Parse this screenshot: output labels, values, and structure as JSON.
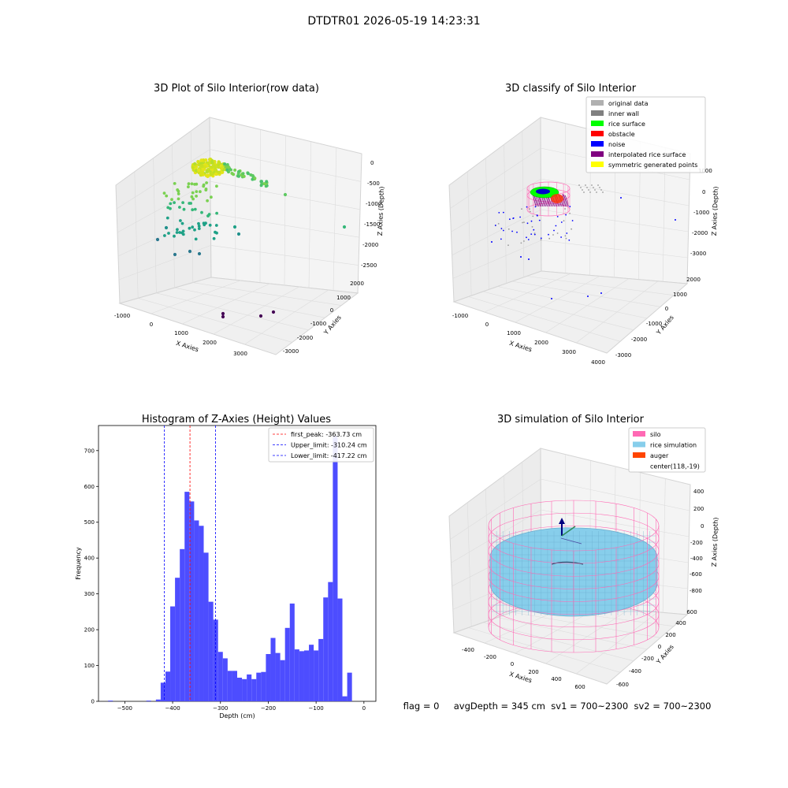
{
  "figure": {
    "suptitle": "DTDTR01 2026-05-19 14:23:31",
    "status_line": "flag = 0     avgDepth = 345 cm  sv1 = 700~2300  sv2 = 700~2300"
  },
  "panels": {
    "raw": {
      "title": "3D Plot of Silo Interior(row data)",
      "xlabel": "X Axies",
      "ylabel": "Y Axies",
      "zlabel": "Z Axies (Depth)",
      "xticks": [
        "-1000",
        "0",
        "1000",
        "2000",
        "3000"
      ],
      "yticks": [
        "2000",
        "1000",
        "0",
        "-1000",
        "-2000",
        "-3000"
      ],
      "zticks": [
        "0",
        "-500",
        "-1000",
        "-1500",
        "-2000",
        "-2500"
      ]
    },
    "classify": {
      "title": "3D classify of Silo Interior",
      "xlabel": "X Axies",
      "ylabel": "Y Axies",
      "zlabel": "Z Axies (Depth)",
      "xticks": [
        "-1000",
        "0",
        "1000",
        "2000",
        "3000",
        "4000"
      ],
      "yticks": [
        "2000",
        "1000",
        "0",
        "-1000",
        "-2000",
        "-3000"
      ],
      "zticks": [
        "1000",
        "0",
        "-1000",
        "-2000",
        "-3000"
      ],
      "legend": [
        {
          "label": "original data",
          "color": "#b0b0b0"
        },
        {
          "label": "inner wall",
          "color": "#808080"
        },
        {
          "label": "rice surface",
          "color": "#00ff00"
        },
        {
          "label": "obstacle",
          "color": "#ff0000"
        },
        {
          "label": "noise",
          "color": "#0000ff"
        },
        {
          "label": "interpolated rice surface",
          "color": "#800080"
        },
        {
          "label": "symmetric generated points",
          "color": "#ffff00"
        }
      ]
    },
    "simulation": {
      "title": "3D simulation of Silo Interior",
      "xlabel": "X Axies",
      "ylabel": "Y Axies",
      "zlabel": "Z Axies (Depth)",
      "xticks": [
        "-400",
        "-200",
        "0",
        "200",
        "400",
        "600"
      ],
      "yticks": [
        "600",
        "400",
        "200",
        "0",
        "-200",
        "-400",
        "-600"
      ],
      "zticks": [
        "400",
        "200",
        "0",
        "-200",
        "-400",
        "-600",
        "-800"
      ],
      "legend": [
        {
          "label": "silo",
          "color": "#ff69b4"
        },
        {
          "label": "rice simulation",
          "color": "#87ceeb"
        },
        {
          "label": "auger",
          "color": "#ff4500"
        },
        {
          "label": "center(118,-19)",
          "color": ""
        }
      ]
    }
  },
  "chart_data": [
    {
      "type": "scatter",
      "title": "3D Plot of Silo Interior(row data)",
      "xlabel": "X Axies",
      "ylabel": "Y Axies",
      "zlabel": "Z Axies (Depth)",
      "xlim": [
        -1000,
        3500
      ],
      "ylim": [
        -3000,
        2000
      ],
      "zlim": [
        -2700,
        0
      ],
      "grid": true
    },
    {
      "type": "scatter",
      "title": "3D classify of Silo Interior",
      "xlabel": "X Axies",
      "ylabel": "Y Axies",
      "zlabel": "Z Axies (Depth)",
      "xlim": [
        -1000,
        4000
      ],
      "ylim": [
        -3000,
        2000
      ],
      "zlim": [
        -3300,
        1000
      ],
      "legend_position": "top-right",
      "grid": true
    },
    {
      "type": "bar",
      "title": "Histogram of Z-Axies (Height) Values",
      "xlabel": "Depth (cm)",
      "ylabel": "Frequency",
      "xlim": [
        -555,
        25
      ],
      "ylim": [
        0,
        770
      ],
      "xticks": [
        -500,
        -400,
        -300,
        -200,
        -100,
        0
      ],
      "yticks": [
        0,
        100,
        200,
        300,
        400,
        500,
        600,
        700
      ],
      "bin_width": 10,
      "bins": [
        {
          "x": -530,
          "v": 2
        },
        {
          "x": -450,
          "v": 2
        },
        {
          "x": -430,
          "v": 5
        },
        {
          "x": -420,
          "v": 52
        },
        {
          "x": -410,
          "v": 83
        },
        {
          "x": -400,
          "v": 265
        },
        {
          "x": -390,
          "v": 345
        },
        {
          "x": -380,
          "v": 425
        },
        {
          "x": -370,
          "v": 585
        },
        {
          "x": -360,
          "v": 558
        },
        {
          "x": -350,
          "v": 505
        },
        {
          "x": -340,
          "v": 490
        },
        {
          "x": -330,
          "v": 415
        },
        {
          "x": -320,
          "v": 278
        },
        {
          "x": -310,
          "v": 228
        },
        {
          "x": -300,
          "v": 138
        },
        {
          "x": -290,
          "v": 120
        },
        {
          "x": -280,
          "v": 85
        },
        {
          "x": -270,
          "v": 85
        },
        {
          "x": -260,
          "v": 66
        },
        {
          "x": -250,
          "v": 62
        },
        {
          "x": -240,
          "v": 75
        },
        {
          "x": -230,
          "v": 62
        },
        {
          "x": -220,
          "v": 80
        },
        {
          "x": -210,
          "v": 82
        },
        {
          "x": -200,
          "v": 132
        },
        {
          "x": -190,
          "v": 177
        },
        {
          "x": -180,
          "v": 135
        },
        {
          "x": -170,
          "v": 115
        },
        {
          "x": -160,
          "v": 205
        },
        {
          "x": -150,
          "v": 273
        },
        {
          "x": -140,
          "v": 145
        },
        {
          "x": -130,
          "v": 140
        },
        {
          "x": -120,
          "v": 142
        },
        {
          "x": -110,
          "v": 158
        },
        {
          "x": -100,
          "v": 142
        },
        {
          "x": -90,
          "v": 174
        },
        {
          "x": -80,
          "v": 290
        },
        {
          "x": -70,
          "v": 333
        },
        {
          "x": -60,
          "v": 740
        },
        {
          "x": -50,
          "v": 287
        },
        {
          "x": -40,
          "v": 14
        },
        {
          "x": -30,
          "v": 80
        }
      ],
      "vlines": [
        {
          "x": -363.73,
          "color": "#ff0000",
          "label": "first_peak: -363.73 cm"
        },
        {
          "x": -310.24,
          "color": "#0000ff",
          "label": "Upper_limit: -310.24 cm"
        },
        {
          "x": -417.22,
          "color": "#0000ff",
          "label": "Lower_limit: -417.22 cm"
        }
      ],
      "bar_color": "#4d4dff",
      "legend_position": "top-right"
    },
    {
      "type": "surface",
      "title": "3D simulation of Silo Interior",
      "xlabel": "X Axies",
      "ylabel": "Y Axies",
      "zlabel": "Z Axies (Depth)",
      "xlim": [
        -500,
        700
      ],
      "ylim": [
        -700,
        700
      ],
      "zlim": [
        -900,
        500
      ],
      "legend_position": "top-right",
      "grid": true
    }
  ]
}
